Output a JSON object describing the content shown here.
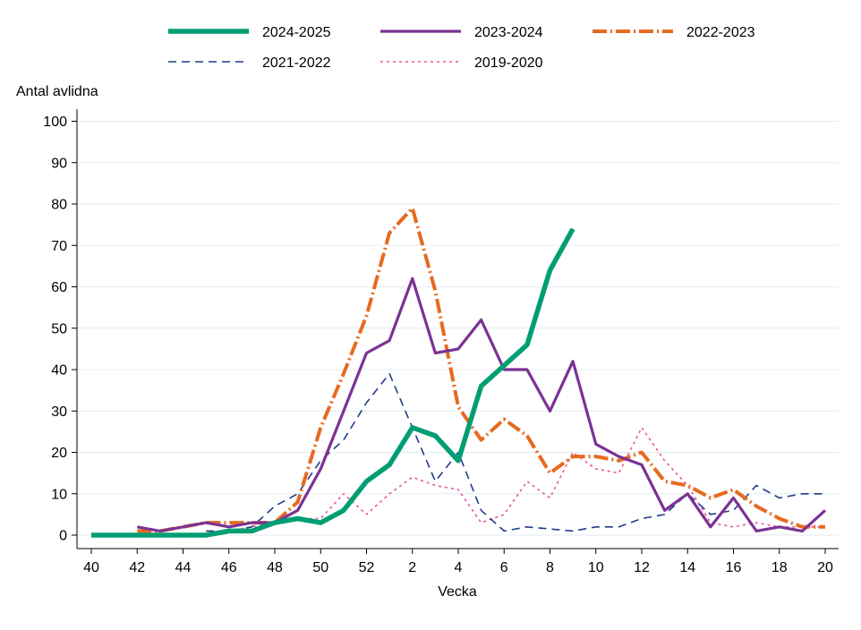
{
  "chart_data": {
    "type": "line",
    "title": "",
    "xlabel": "Vecka",
    "ylabel": "Antal avlidna",
    "ylim": [
      0,
      100
    ],
    "yticks": [
      0,
      10,
      20,
      30,
      40,
      50,
      60,
      70,
      80,
      90,
      100
    ],
    "x": [
      40,
      41,
      42,
      43,
      44,
      45,
      46,
      47,
      48,
      49,
      50,
      51,
      52,
      1,
      2,
      3,
      4,
      5,
      6,
      7,
      8,
      9,
      10,
      11,
      12,
      13,
      14,
      15,
      16,
      17,
      18,
      19,
      20
    ],
    "xticks": [
      "40",
      "42",
      "44",
      "46",
      "48",
      "50",
      "52",
      "2",
      "4",
      "6",
      "8",
      "10",
      "12",
      "14",
      "16",
      "18",
      "20"
    ],
    "grid": true,
    "legend_position": "top",
    "series": [
      {
        "name": "2024-2025",
        "color": "#009e73",
        "style": "thick-solid",
        "values": [
          0,
          0,
          0,
          0,
          0,
          0,
          1,
          1,
          3,
          4,
          3,
          6,
          13,
          17,
          26,
          24,
          18,
          36,
          41,
          46,
          64,
          74,
          null,
          null,
          null,
          null,
          null,
          null,
          null,
          null,
          null,
          null,
          null
        ]
      },
      {
        "name": "2023-2024",
        "color": "#7b3294",
        "style": "solid",
        "values": [
          null,
          null,
          2,
          1,
          2,
          3,
          2,
          3,
          3,
          6,
          16,
          30,
          44,
          47,
          62,
          44,
          45,
          52,
          40,
          40,
          30,
          42,
          22,
          19,
          17,
          6,
          10,
          2,
          9,
          1,
          2,
          1,
          6
        ]
      },
      {
        "name": "2022-2023",
        "color": "#e66a1f",
        "style": "dash-dot",
        "values": [
          null,
          null,
          1,
          1,
          2,
          3,
          3,
          3,
          3,
          8,
          26,
          39,
          53,
          73,
          79,
          59,
          31,
          23,
          28,
          24,
          15,
          19,
          19,
          18,
          20,
          13,
          12,
          9,
          11,
          7,
          4,
          2,
          2
        ]
      },
      {
        "name": "2021-2022",
        "color": "#1f3c88",
        "style": "dashed",
        "values": [
          null,
          null,
          null,
          null,
          null,
          1,
          1,
          2,
          7,
          10,
          18,
          23,
          32,
          39,
          26,
          13,
          20,
          6,
          1,
          2,
          1.5,
          1,
          2,
          2,
          4,
          5,
          10,
          5,
          6,
          12,
          9,
          10,
          10
        ]
      },
      {
        "name": "2019-2020",
        "color": "#e8559a",
        "style": "dotted",
        "values": [
          null,
          null,
          null,
          null,
          null,
          null,
          1,
          2,
          3,
          4,
          4,
          10,
          5,
          10,
          14,
          12,
          11,
          3,
          5,
          13,
          9,
          20,
          16,
          15,
          26,
          18,
          12,
          3,
          2,
          3,
          2,
          2,
          2
        ]
      }
    ]
  }
}
